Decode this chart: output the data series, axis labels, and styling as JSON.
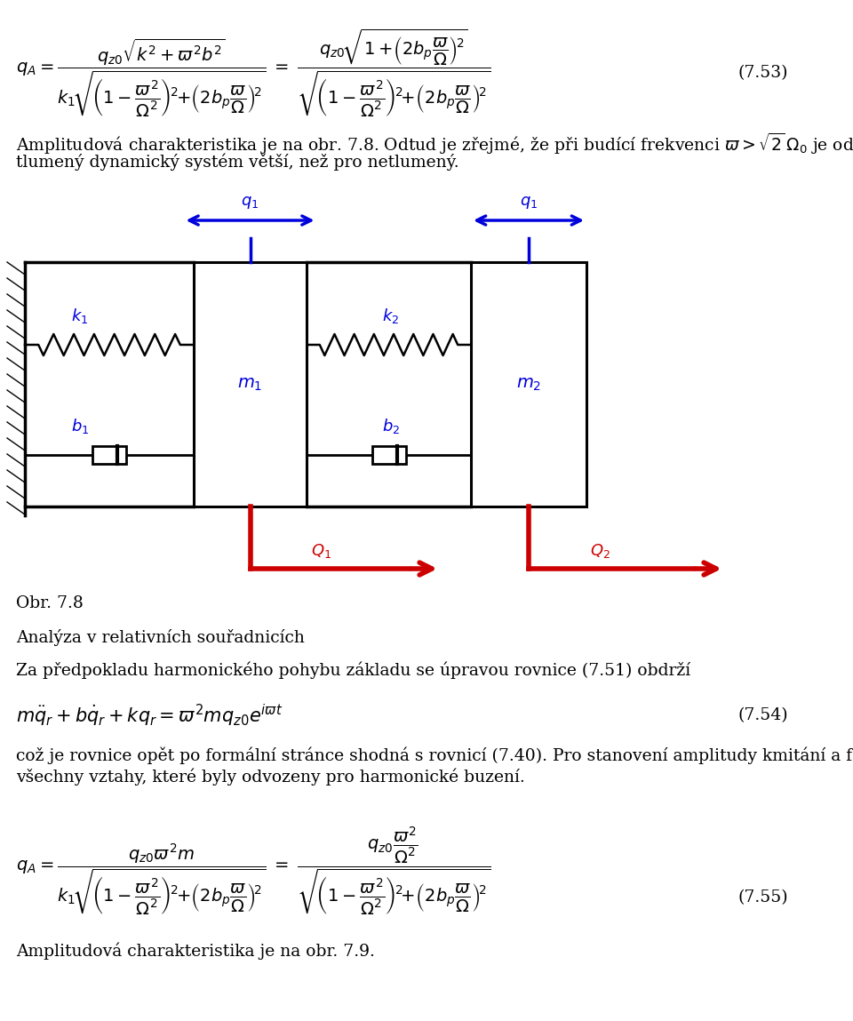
{
  "background_color": "#ffffff",
  "blue_color": "#0000dd",
  "red_color": "#cc0000",
  "fig_width": 9.6,
  "fig_height": 11.49,
  "label_753": "(7.53)",
  "label_754": "(7.54)",
  "label_755": "(7.55)",
  "caption": "Obr. 7.8",
  "heading": "Analýza v relativních souřadnicích",
  "para1": "Za předpokladu harmonického pohybu základu se úpravou rovnice (7.51) obdrží",
  "text3a": "což je rovnice opět po formální stránce shodná s rovnicí (7.40). Pro stanovení amplitudy kmitání a fáze lze použít",
  "text3b": "všechny vztahy, které byly odvozeny pro harmonické buzení.",
  "text5": "Amplitudová charakteristika je na obr. 7.9."
}
